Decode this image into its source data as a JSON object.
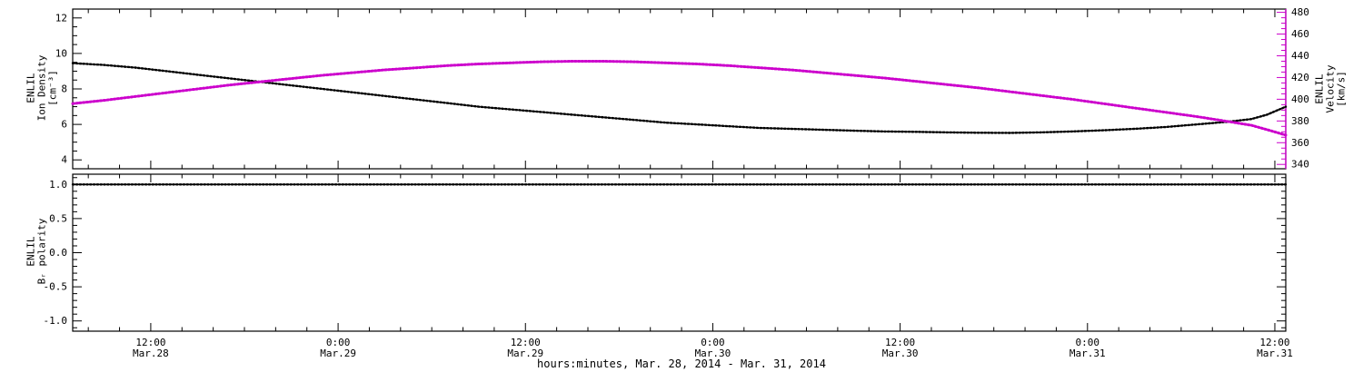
{
  "title": "",
  "x_axis": {
    "label": "hours:minutes, Mar. 28, 2014 - Mar. 31, 2014",
    "range_hours": [
      7.0,
      84.7
    ],
    "minor_step_hours": 2,
    "major_ticks": [
      {
        "hour": 12,
        "time": "12:00",
        "date": "Mar.28"
      },
      {
        "hour": 24,
        "time": "0:00",
        "date": "Mar.29"
      },
      {
        "hour": 36,
        "time": "12:00",
        "date": "Mar.29"
      },
      {
        "hour": 48,
        "time": "0:00",
        "date": "Mar.30"
      },
      {
        "hour": 60,
        "time": "12:00",
        "date": "Mar.30"
      },
      {
        "hour": 72,
        "time": "0:00",
        "date": "Mar.31"
      },
      {
        "hour": 84,
        "time": "12:00",
        "date": "Mar.31"
      }
    ]
  },
  "colors": {
    "frame": "#000000",
    "density": "#000000",
    "velocity": "#cc00cc",
    "polarity": "#000000"
  },
  "chart_data": [
    {
      "type": "line",
      "panel": "density-velocity",
      "x_hours": [
        7,
        9,
        11,
        13,
        15,
        17,
        19,
        21,
        23,
        25,
        27,
        29,
        31,
        33,
        35,
        37,
        39,
        41,
        43,
        45,
        47,
        49,
        51,
        53,
        55,
        57,
        59,
        61,
        63,
        65,
        67,
        69,
        71,
        73,
        75,
        77,
        79,
        81,
        82.5,
        83.5,
        84.7
      ],
      "series": [
        {
          "name": "ENLIL Ion Density",
          "axis": "left",
          "color": "#000000",
          "values": [
            9.45,
            9.35,
            9.2,
            9.0,
            8.8,
            8.6,
            8.4,
            8.2,
            8.0,
            7.8,
            7.6,
            7.4,
            7.2,
            7.0,
            6.85,
            6.7,
            6.55,
            6.4,
            6.25,
            6.1,
            6.0,
            5.9,
            5.8,
            5.75,
            5.7,
            5.65,
            5.6,
            5.58,
            5.55,
            5.53,
            5.52,
            5.55,
            5.6,
            5.67,
            5.75,
            5.85,
            6.0,
            6.15,
            6.3,
            6.55,
            7.0
          ]
        },
        {
          "name": "ENLIL Velocity",
          "axis": "right",
          "color": "#cc00cc",
          "values": [
            396,
            399,
            402.5,
            406,
            409.5,
            413,
            416,
            419,
            422,
            424.5,
            427,
            429,
            431,
            432.5,
            433.5,
            434.5,
            435,
            435,
            434.5,
            433.5,
            432.5,
            431,
            429,
            427,
            424.5,
            422,
            419.5,
            416.5,
            413.5,
            410.5,
            407,
            403.5,
            400,
            396,
            392,
            388,
            384,
            379.5,
            376,
            372,
            367
          ]
        }
      ],
      "left_axis": {
        "label_lines": [
          "ENLIL",
          "Ion Density",
          "[cm⁻³]"
        ],
        "range": [
          3.5,
          12.5
        ],
        "major_ticks": [
          4,
          6,
          8,
          10,
          12
        ],
        "minor_step": 0.5,
        "decimals": 0,
        "color": "#000000"
      },
      "right_axis": {
        "label_lines": [
          "ENLIL",
          "Velocity",
          "[km/s]"
        ],
        "range": [
          336,
          483
        ],
        "major_ticks": [
          340,
          360,
          380,
          400,
          420,
          440,
          460,
          480
        ],
        "minor_step": 5,
        "decimals": 0,
        "color": "#cc00cc"
      }
    },
    {
      "type": "line",
      "panel": "br-polarity",
      "x_hours": [
        7.0,
        84.7
      ],
      "series": [
        {
          "name": "ENLIL Br polarity",
          "axis": "left",
          "color": "#000000",
          "values": [
            1.0,
            1.0
          ]
        }
      ],
      "left_axis": {
        "label_lines": [
          "ENLIL",
          "Bᵣ polarity"
        ],
        "range": [
          -1.15,
          1.15
        ],
        "major_ticks": [
          1.0,
          0.5,
          0.0,
          -0.5,
          -1.0
        ],
        "minor_step": 0.1,
        "decimals": 1,
        "color": "#000000"
      }
    }
  ]
}
